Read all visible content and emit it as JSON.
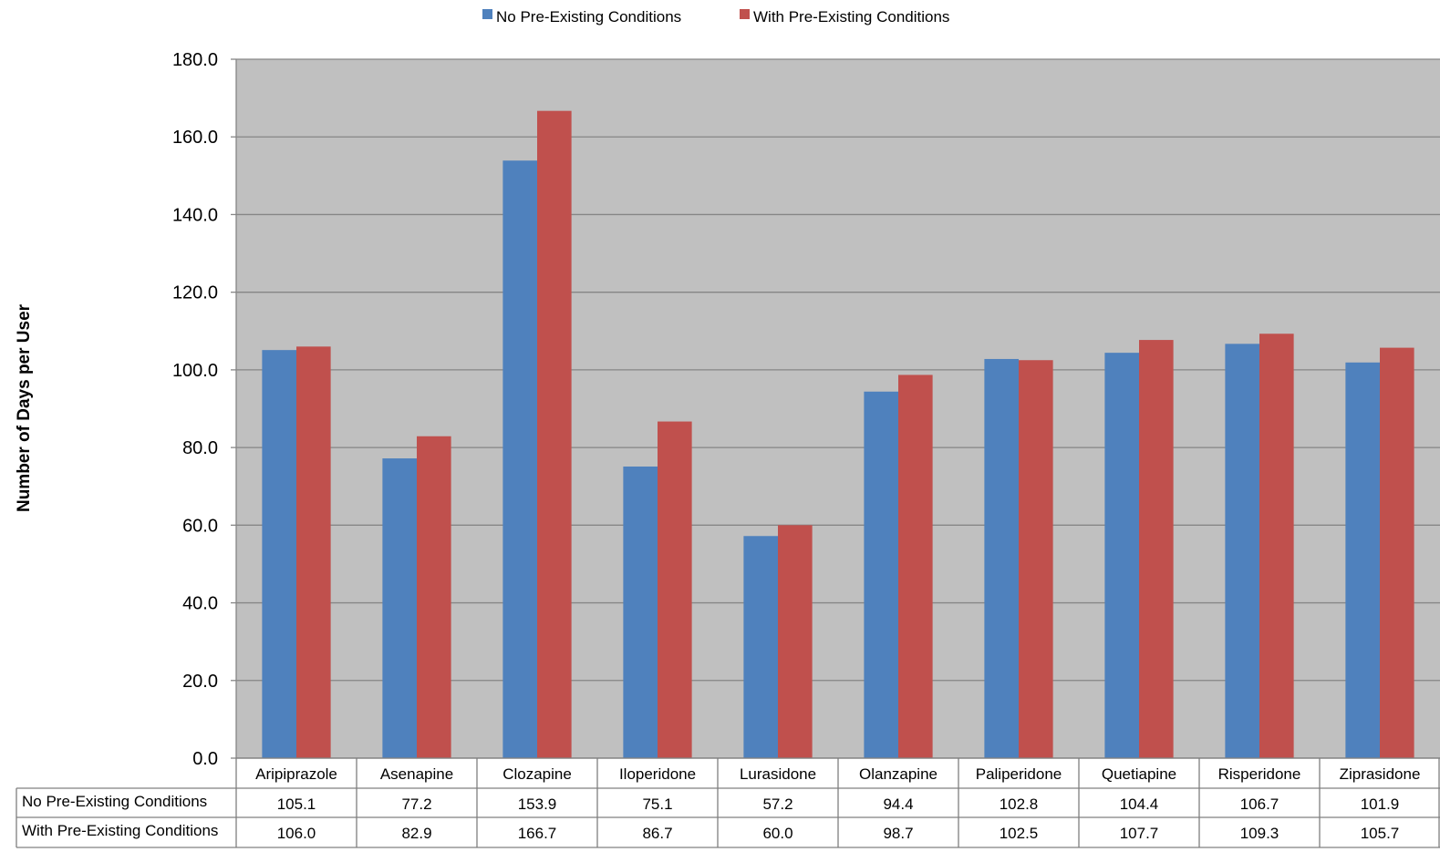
{
  "chart_data": {
    "type": "bar",
    "ylabel": "Number of Days per User",
    "ylim": [
      0,
      180
    ],
    "y_ticks": [
      "0.0",
      "20.0",
      "40.0",
      "60.0",
      "80.0",
      "100.0",
      "120.0",
      "140.0",
      "160.0",
      "180.0"
    ],
    "grid": true,
    "legend_position": "top",
    "plot_background": "#c0c0c0",
    "categories": [
      "Aripiprazole",
      "Asenapine",
      "Clozapine",
      "Iloperidone",
      "Lurasidone",
      "Olanzapine",
      "Paliperidone",
      "Quetiapine",
      "Risperidone",
      "Ziprasidone"
    ],
    "series": [
      {
        "name": "No Pre-Existing Conditions",
        "color": "#4f81bd",
        "values": [
          105.1,
          77.2,
          153.9,
          75.1,
          57.2,
          94.4,
          102.8,
          104.4,
          106.7,
          101.9
        ],
        "labels": [
          "105.1",
          "77.2",
          "153.9",
          "75.1",
          "57.2",
          "94.4",
          "102.8",
          "104.4",
          "106.7",
          "101.9"
        ]
      },
      {
        "name": "With Pre-Existing Conditions",
        "color": "#c0504d",
        "values": [
          106.0,
          82.9,
          166.7,
          86.7,
          60.0,
          98.7,
          102.5,
          107.7,
          109.3,
          105.7
        ],
        "labels": [
          "106.0",
          "82.9",
          "166.7",
          "86.7",
          "60.0",
          "98.7",
          "102.5",
          "107.7",
          "109.3",
          "105.7"
        ]
      }
    ]
  }
}
